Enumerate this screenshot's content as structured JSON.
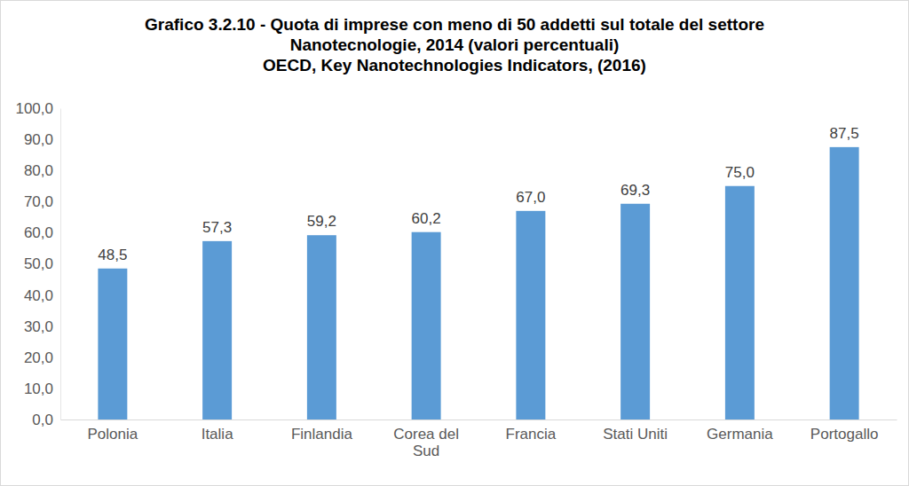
{
  "chart_data": {
    "type": "bar",
    "title": "Grafico 3.2.10 - Quota di imprese con meno di 50 addetti sul totale del settore Nanotecnologie, 2014 (valori percentuali)",
    "subtitle": "OECD, Key Nanotechnologies Indicators, (2016)",
    "categories": [
      "Polonia",
      "Italia",
      "Finlandia",
      "Corea del Sud",
      "Francia",
      "Stati Uniti",
      "Germania",
      "Portogallo"
    ],
    "values": [
      48.5,
      57.3,
      59.2,
      60.2,
      67.0,
      69.3,
      75.0,
      87.5
    ],
    "value_labels": [
      "48,5",
      "57,3",
      "59,2",
      "60,2",
      "67,0",
      "69,3",
      "75,0",
      "87,5"
    ],
    "color": "#5b9bd5",
    "ylim": [
      0,
      100
    ],
    "yticks": [
      {
        "value": 0,
        "label": "0,0"
      },
      {
        "value": 10,
        "label": "10,0"
      },
      {
        "value": 20,
        "label": "20,0"
      },
      {
        "value": 30,
        "label": "30,0"
      },
      {
        "value": 40,
        "label": "40,0"
      },
      {
        "value": 50,
        "label": "50,0"
      },
      {
        "value": 60,
        "label": "60,0"
      },
      {
        "value": 70,
        "label": "70,0"
      },
      {
        "value": 80,
        "label": "80,0"
      },
      {
        "value": 90,
        "label": "90,0"
      },
      {
        "value": 100,
        "label": "100,0"
      }
    ],
    "grid": false,
    "data_labels": true
  }
}
